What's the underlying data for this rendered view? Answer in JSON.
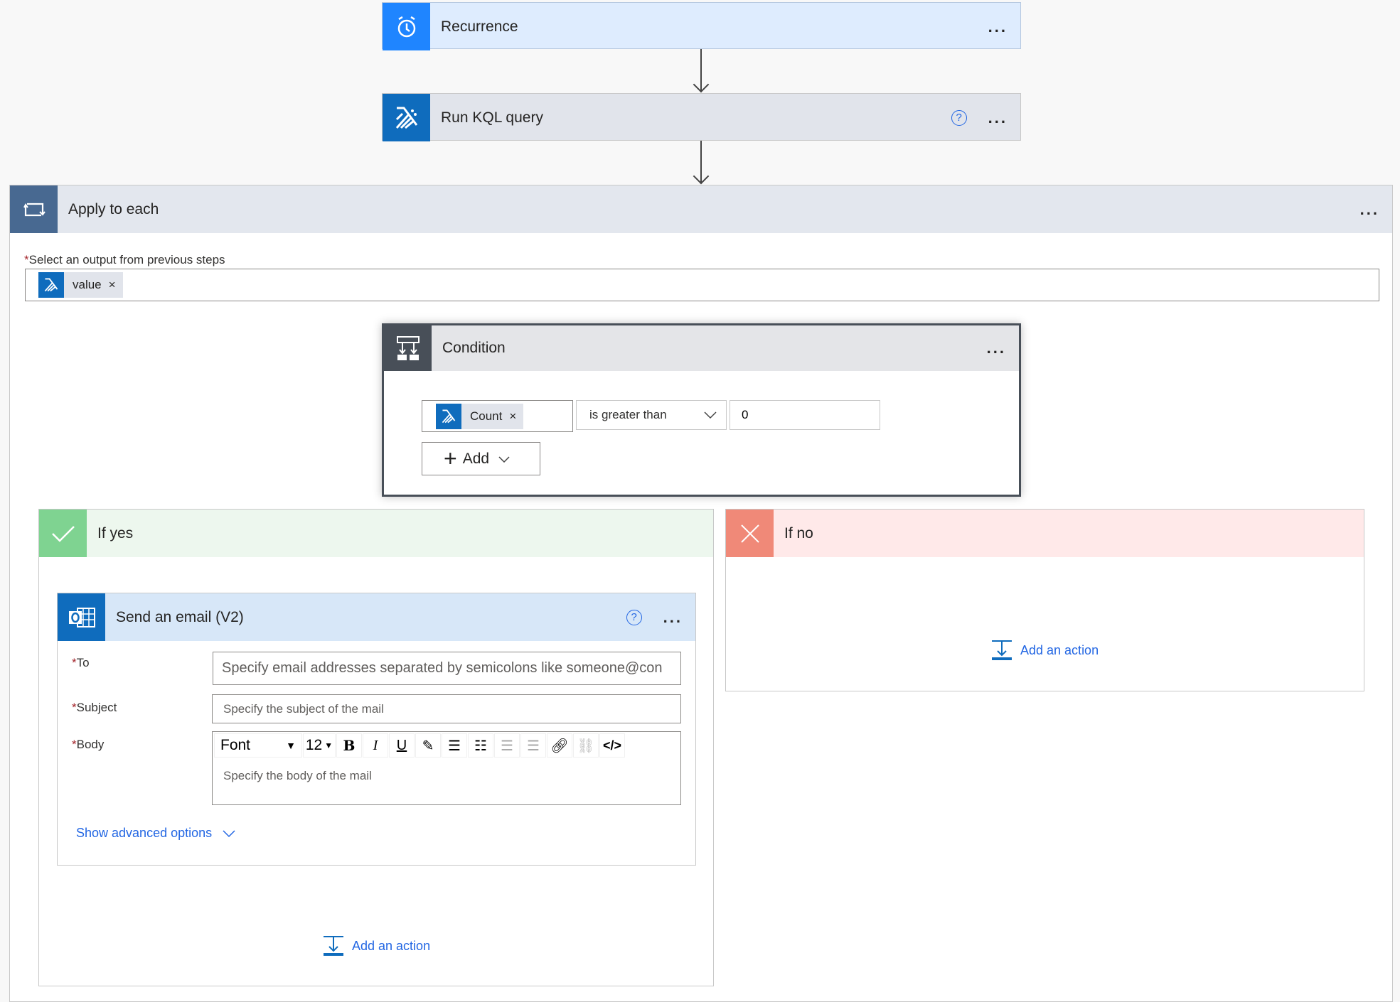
{
  "recurrence": {
    "title": "Recurrence",
    "icon": "alarm-clock-icon",
    "color": "#1f85ff",
    "bg": "#deecfe"
  },
  "kql": {
    "title": "Run KQL query",
    "icon": "kusto-icon",
    "color": "#0f6cbd",
    "bg": "#e1e4eb"
  },
  "apply_each": {
    "title": "Apply to each",
    "icon": "loop-icon",
    "label": "Select an output from previous steps",
    "token": "value",
    "color": "#486991"
  },
  "condition": {
    "title": "Condition",
    "icon": "condition-icon",
    "left_token": "Count",
    "operator": "is greater than",
    "value": "0",
    "add_label": "Add",
    "color": "#484f58"
  },
  "if_yes": {
    "title": "If yes",
    "color": "#7fd391",
    "bg": "#edf7ee",
    "add_action": "Add an action"
  },
  "if_no": {
    "title": "If no",
    "color": "#f08978",
    "bg": "#ffe9e9",
    "add_action": "Add an action"
  },
  "email": {
    "title": "Send an email (V2)",
    "icon": "outlook-icon",
    "color": "#0f6cbd",
    "bg": "#d7e7f8",
    "to_label": "To",
    "to_placeholder": "Specify email addresses separated by semicolons like someone@con",
    "subject_label": "Subject",
    "subject_placeholder": "Specify the subject of the mail",
    "body_label": "Body",
    "body_placeholder": "Specify the body of the mail",
    "font": "Font",
    "font_size": "12",
    "advanced": "Show advanced options"
  },
  "menu": "...",
  "help": "?",
  "required": "*",
  "remove": "×"
}
